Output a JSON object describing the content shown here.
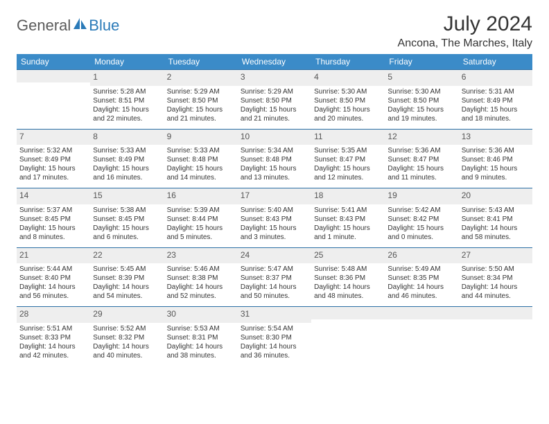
{
  "logo": {
    "text1": "General",
    "text2": "Blue"
  },
  "title": "July 2024",
  "location": "Ancona, The Marches, Italy",
  "colors": {
    "header_bg": "#3b8bc8",
    "header_text": "#ffffff",
    "border": "#2a6ea5",
    "shade": "#eeeeee",
    "logo_gray": "#5a5a5a",
    "logo_blue": "#2a7ab8"
  },
  "days_of_week": [
    "Sunday",
    "Monday",
    "Tuesday",
    "Wednesday",
    "Thursday",
    "Friday",
    "Saturday"
  ],
  "weeks": [
    [
      null,
      {
        "n": "1",
        "sr": "Sunrise: 5:28 AM",
        "ss": "Sunset: 8:51 PM",
        "d1": "Daylight: 15 hours",
        "d2": "and 22 minutes."
      },
      {
        "n": "2",
        "sr": "Sunrise: 5:29 AM",
        "ss": "Sunset: 8:50 PM",
        "d1": "Daylight: 15 hours",
        "d2": "and 21 minutes."
      },
      {
        "n": "3",
        "sr": "Sunrise: 5:29 AM",
        "ss": "Sunset: 8:50 PM",
        "d1": "Daylight: 15 hours",
        "d2": "and 21 minutes."
      },
      {
        "n": "4",
        "sr": "Sunrise: 5:30 AM",
        "ss": "Sunset: 8:50 PM",
        "d1": "Daylight: 15 hours",
        "d2": "and 20 minutes."
      },
      {
        "n": "5",
        "sr": "Sunrise: 5:30 AM",
        "ss": "Sunset: 8:50 PM",
        "d1": "Daylight: 15 hours",
        "d2": "and 19 minutes."
      },
      {
        "n": "6",
        "sr": "Sunrise: 5:31 AM",
        "ss": "Sunset: 8:49 PM",
        "d1": "Daylight: 15 hours",
        "d2": "and 18 minutes."
      }
    ],
    [
      {
        "n": "7",
        "sr": "Sunrise: 5:32 AM",
        "ss": "Sunset: 8:49 PM",
        "d1": "Daylight: 15 hours",
        "d2": "and 17 minutes."
      },
      {
        "n": "8",
        "sr": "Sunrise: 5:33 AM",
        "ss": "Sunset: 8:49 PM",
        "d1": "Daylight: 15 hours",
        "d2": "and 16 minutes."
      },
      {
        "n": "9",
        "sr": "Sunrise: 5:33 AM",
        "ss": "Sunset: 8:48 PM",
        "d1": "Daylight: 15 hours",
        "d2": "and 14 minutes."
      },
      {
        "n": "10",
        "sr": "Sunrise: 5:34 AM",
        "ss": "Sunset: 8:48 PM",
        "d1": "Daylight: 15 hours",
        "d2": "and 13 minutes."
      },
      {
        "n": "11",
        "sr": "Sunrise: 5:35 AM",
        "ss": "Sunset: 8:47 PM",
        "d1": "Daylight: 15 hours",
        "d2": "and 12 minutes."
      },
      {
        "n": "12",
        "sr": "Sunrise: 5:36 AM",
        "ss": "Sunset: 8:47 PM",
        "d1": "Daylight: 15 hours",
        "d2": "and 11 minutes."
      },
      {
        "n": "13",
        "sr": "Sunrise: 5:36 AM",
        "ss": "Sunset: 8:46 PM",
        "d1": "Daylight: 15 hours",
        "d2": "and 9 minutes."
      }
    ],
    [
      {
        "n": "14",
        "sr": "Sunrise: 5:37 AM",
        "ss": "Sunset: 8:45 PM",
        "d1": "Daylight: 15 hours",
        "d2": "and 8 minutes."
      },
      {
        "n": "15",
        "sr": "Sunrise: 5:38 AM",
        "ss": "Sunset: 8:45 PM",
        "d1": "Daylight: 15 hours",
        "d2": "and 6 minutes."
      },
      {
        "n": "16",
        "sr": "Sunrise: 5:39 AM",
        "ss": "Sunset: 8:44 PM",
        "d1": "Daylight: 15 hours",
        "d2": "and 5 minutes."
      },
      {
        "n": "17",
        "sr": "Sunrise: 5:40 AM",
        "ss": "Sunset: 8:43 PM",
        "d1": "Daylight: 15 hours",
        "d2": "and 3 minutes."
      },
      {
        "n": "18",
        "sr": "Sunrise: 5:41 AM",
        "ss": "Sunset: 8:43 PM",
        "d1": "Daylight: 15 hours",
        "d2": "and 1 minute."
      },
      {
        "n": "19",
        "sr": "Sunrise: 5:42 AM",
        "ss": "Sunset: 8:42 PM",
        "d1": "Daylight: 15 hours",
        "d2": "and 0 minutes."
      },
      {
        "n": "20",
        "sr": "Sunrise: 5:43 AM",
        "ss": "Sunset: 8:41 PM",
        "d1": "Daylight: 14 hours",
        "d2": "and 58 minutes."
      }
    ],
    [
      {
        "n": "21",
        "sr": "Sunrise: 5:44 AM",
        "ss": "Sunset: 8:40 PM",
        "d1": "Daylight: 14 hours",
        "d2": "and 56 minutes."
      },
      {
        "n": "22",
        "sr": "Sunrise: 5:45 AM",
        "ss": "Sunset: 8:39 PM",
        "d1": "Daylight: 14 hours",
        "d2": "and 54 minutes."
      },
      {
        "n": "23",
        "sr": "Sunrise: 5:46 AM",
        "ss": "Sunset: 8:38 PM",
        "d1": "Daylight: 14 hours",
        "d2": "and 52 minutes."
      },
      {
        "n": "24",
        "sr": "Sunrise: 5:47 AM",
        "ss": "Sunset: 8:37 PM",
        "d1": "Daylight: 14 hours",
        "d2": "and 50 minutes."
      },
      {
        "n": "25",
        "sr": "Sunrise: 5:48 AM",
        "ss": "Sunset: 8:36 PM",
        "d1": "Daylight: 14 hours",
        "d2": "and 48 minutes."
      },
      {
        "n": "26",
        "sr": "Sunrise: 5:49 AM",
        "ss": "Sunset: 8:35 PM",
        "d1": "Daylight: 14 hours",
        "d2": "and 46 minutes."
      },
      {
        "n": "27",
        "sr": "Sunrise: 5:50 AM",
        "ss": "Sunset: 8:34 PM",
        "d1": "Daylight: 14 hours",
        "d2": "and 44 minutes."
      }
    ],
    [
      {
        "n": "28",
        "sr": "Sunrise: 5:51 AM",
        "ss": "Sunset: 8:33 PM",
        "d1": "Daylight: 14 hours",
        "d2": "and 42 minutes."
      },
      {
        "n": "29",
        "sr": "Sunrise: 5:52 AM",
        "ss": "Sunset: 8:32 PM",
        "d1": "Daylight: 14 hours",
        "d2": "and 40 minutes."
      },
      {
        "n": "30",
        "sr": "Sunrise: 5:53 AM",
        "ss": "Sunset: 8:31 PM",
        "d1": "Daylight: 14 hours",
        "d2": "and 38 minutes."
      },
      {
        "n": "31",
        "sr": "Sunrise: 5:54 AM",
        "ss": "Sunset: 8:30 PM",
        "d1": "Daylight: 14 hours",
        "d2": "and 36 minutes."
      },
      null,
      null,
      null
    ]
  ]
}
